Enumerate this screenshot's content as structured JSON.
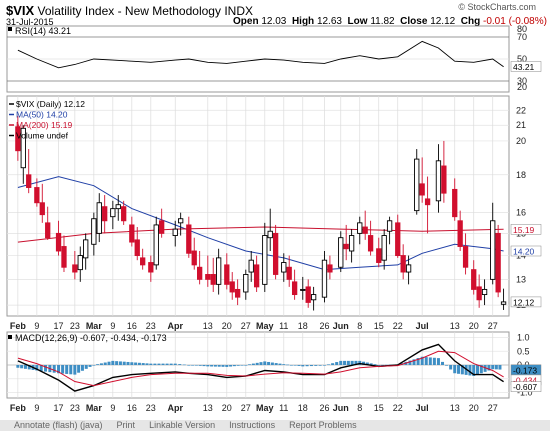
{
  "header": {
    "symbol": "$VIX",
    "name": "Volatility Index - New Methodology",
    "exchange": "INDX",
    "date": "31-Jul-2015",
    "logo": "© StockCharts.com",
    "open_label": "Open",
    "open": "12.03",
    "high_label": "High",
    "high": "12.63",
    "low_label": "Low",
    "low": "11.82",
    "close_label": "Close",
    "close": "12.12",
    "chg_label": "Chg",
    "chg": "-0.01 (-0.08%)",
    "chg_color": "#c00000"
  },
  "chart_data": [
    {
      "type": "line",
      "panel": "rsi",
      "legend": "RSI(14) 43.21",
      "ylim": [
        20,
        80
      ],
      "y_ticks": [
        30,
        50,
        70
      ],
      "levels": [
        30,
        70
      ],
      "current_label": "43.21",
      "line_color": "#000000",
      "x": [
        "2015-02-02",
        "2015-02-09",
        "2015-02-17",
        "2015-02-23",
        "2015-03-02",
        "2015-03-09",
        "2015-03-16",
        "2015-03-23",
        "2015-04-01",
        "2015-04-06",
        "2015-04-13",
        "2015-04-20",
        "2015-04-27",
        "2015-05-04",
        "2015-05-11",
        "2015-05-18",
        "2015-05-26",
        "2015-06-01",
        "2015-06-08",
        "2015-06-15",
        "2015-06-22",
        "2015-07-01",
        "2015-07-07",
        "2015-07-13",
        "2015-07-20",
        "2015-07-27",
        "2015-07-31"
      ],
      "values": [
        58,
        50,
        42,
        45,
        50,
        49,
        48,
        47,
        49,
        50,
        47,
        46,
        48,
        50,
        49,
        47,
        46,
        50,
        53,
        50,
        52,
        66,
        60,
        48,
        47,
        50,
        43
      ]
    },
    {
      "type": "candlestick",
      "panel": "price",
      "legend": [
        "$VIX (Daily) 12.12",
        "MA(50) 14.20",
        "MA(200) 15.19",
        "Volume undef"
      ],
      "ylim": [
        11.6,
        23
      ],
      "y_ticks": [
        12,
        13,
        14,
        15,
        16,
        18,
        20,
        21,
        22
      ],
      "y_scale": "log",
      "current_labels": {
        "ma200": "15.19",
        "ma50": "14.20",
        "close": "12.12"
      },
      "x_ticks": [
        "Feb",
        "9",
        "17",
        "23",
        "Mar",
        "9",
        "16",
        "23",
        "Apr",
        "13",
        "20",
        "27",
        "May",
        "11",
        "18",
        "26",
        "Jun",
        "8",
        "15",
        "22",
        "Jul",
        "13",
        "20",
        "27"
      ],
      "up_color": "#000000",
      "down_color": "#d10f2e",
      "series": [
        {
          "name": "MA(50) 14.20",
          "color": "#1f3fa6",
          "x": [
            "2015-02-02",
            "2015-02-17",
            "2015-03-02",
            "2015-03-16",
            "2015-04-01",
            "2015-04-13",
            "2015-04-27",
            "2015-05-11",
            "2015-05-26",
            "2015-06-08",
            "2015-06-22",
            "2015-07-01",
            "2015-07-13",
            "2015-07-27",
            "2015-07-31"
          ],
          "values": [
            17.3,
            17.9,
            17.4,
            16.2,
            15.4,
            14.8,
            14.2,
            13.9,
            13.4,
            13.5,
            13.6,
            14.1,
            14.5,
            14.3,
            14.2
          ]
        },
        {
          "name": "MA(200) 15.19",
          "color": "#c8102e",
          "x": [
            "2015-02-02",
            "2015-03-02",
            "2015-04-01",
            "2015-05-04",
            "2015-06-01",
            "2015-07-01",
            "2015-07-31"
          ],
          "values": [
            14.6,
            15.0,
            15.2,
            15.3,
            15.2,
            15.1,
            15.19
          ]
        }
      ],
      "candles": [
        {
          "d": "2015-02-02",
          "o": 20.9,
          "h": 21.6,
          "l": 18.8,
          "c": 19.4
        },
        {
          "d": "2015-02-04",
          "o": 18.4,
          "h": 21.0,
          "l": 17.5,
          "c": 20.8
        },
        {
          "d": "2015-02-06",
          "o": 18.0,
          "h": 19.5,
          "l": 17.0,
          "c": 17.3
        },
        {
          "d": "2015-02-09",
          "o": 17.3,
          "h": 17.8,
          "l": 16.3,
          "c": 16.5
        },
        {
          "d": "2015-02-11",
          "o": 16.5,
          "h": 17.5,
          "l": 15.5,
          "c": 15.9
        },
        {
          "d": "2015-02-13",
          "o": 15.5,
          "h": 16.3,
          "l": 14.7,
          "c": 14.8
        },
        {
          "d": "2015-02-17",
          "o": 15.0,
          "h": 15.6,
          "l": 14.0,
          "c": 14.2
        },
        {
          "d": "2015-02-19",
          "o": 14.4,
          "h": 14.9,
          "l": 13.3,
          "c": 13.5
        },
        {
          "d": "2015-02-23",
          "o": 13.6,
          "h": 14.2,
          "l": 13.0,
          "c": 13.3
        },
        {
          "d": "2015-02-25",
          "o": 13.4,
          "h": 14.4,
          "l": 12.9,
          "c": 14.0
        },
        {
          "d": "2015-02-27",
          "o": 13.9,
          "h": 15.0,
          "l": 13.4,
          "c": 14.7
        },
        {
          "d": "2015-03-02",
          "o": 14.5,
          "h": 16.0,
          "l": 14.0,
          "c": 15.7
        },
        {
          "d": "2015-03-04",
          "o": 15.0,
          "h": 17.0,
          "l": 14.6,
          "c": 16.5
        },
        {
          "d": "2015-03-06",
          "o": 16.3,
          "h": 16.9,
          "l": 15.0,
          "c": 15.6
        },
        {
          "d": "2015-03-09",
          "o": 15.8,
          "h": 16.6,
          "l": 15.2,
          "c": 16.2
        },
        {
          "d": "2015-03-11",
          "o": 16.2,
          "h": 16.9,
          "l": 15.6,
          "c": 16.4
        },
        {
          "d": "2015-03-13",
          "o": 16.3,
          "h": 16.6,
          "l": 15.4,
          "c": 15.6
        },
        {
          "d": "2015-03-16",
          "o": 15.4,
          "h": 15.8,
          "l": 14.4,
          "c": 14.6
        },
        {
          "d": "2015-03-18",
          "o": 14.7,
          "h": 15.3,
          "l": 13.8,
          "c": 14.0
        },
        {
          "d": "2015-03-20",
          "o": 13.9,
          "h": 14.3,
          "l": 13.4,
          "c": 13.6
        },
        {
          "d": "2015-03-23",
          "o": 13.7,
          "h": 14.0,
          "l": 12.9,
          "c": 13.3
        },
        {
          "d": "2015-03-25",
          "o": 13.6,
          "h": 15.8,
          "l": 13.4,
          "c": 15.4
        },
        {
          "d": "2015-03-27",
          "o": 15.6,
          "h": 16.2,
          "l": 14.8,
          "c": 15.0
        },
        {
          "d": "2015-04-01",
          "o": 14.9,
          "h": 15.6,
          "l": 14.4,
          "c": 15.2
        },
        {
          "d": "2015-04-03",
          "o": 15.5,
          "h": 16.0,
          "l": 14.9,
          "c": 15.7
        },
        {
          "d": "2015-04-06",
          "o": 15.4,
          "h": 15.8,
          "l": 13.9,
          "c": 14.1
        },
        {
          "d": "2015-04-08",
          "o": 14.2,
          "h": 14.8,
          "l": 13.4,
          "c": 13.6
        },
        {
          "d": "2015-04-10",
          "o": 13.5,
          "h": 14.2,
          "l": 12.8,
          "c": 13.0
        },
        {
          "d": "2015-04-13",
          "o": 13.2,
          "h": 14.0,
          "l": 12.7,
          "c": 13.0
        },
        {
          "d": "2015-04-15",
          "o": 13.2,
          "h": 13.9,
          "l": 12.5,
          "c": 12.8
        },
        {
          "d": "2015-04-17",
          "o": 12.8,
          "h": 14.3,
          "l": 12.4,
          "c": 13.9
        },
        {
          "d": "2015-04-20",
          "o": 13.6,
          "h": 14.1,
          "l": 12.6,
          "c": 12.8
        },
        {
          "d": "2015-04-22",
          "o": 12.9,
          "h": 13.3,
          "l": 12.2,
          "c": 12.5
        },
        {
          "d": "2015-04-24",
          "o": 12.6,
          "h": 13.0,
          "l": 12.0,
          "c": 12.3
        },
        {
          "d": "2015-04-27",
          "o": 12.5,
          "h": 13.4,
          "l": 12.2,
          "c": 13.2
        },
        {
          "d": "2015-04-29",
          "o": 13.3,
          "h": 14.2,
          "l": 12.9,
          "c": 13.8
        },
        {
          "d": "2015-05-01",
          "o": 13.6,
          "h": 14.0,
          "l": 12.5,
          "c": 12.7
        },
        {
          "d": "2015-05-04",
          "o": 12.8,
          "h": 15.5,
          "l": 12.5,
          "c": 14.9
        },
        {
          "d": "2015-05-06",
          "o": 14.8,
          "h": 16.2,
          "l": 14.2,
          "c": 15.1
        },
        {
          "d": "2015-05-08",
          "o": 15.0,
          "h": 15.4,
          "l": 13.0,
          "c": 13.2
        },
        {
          "d": "2015-05-11",
          "o": 13.3,
          "h": 14.1,
          "l": 12.9,
          "c": 13.7
        },
        {
          "d": "2015-05-13",
          "o": 13.5,
          "h": 14.0,
          "l": 12.7,
          "c": 13.0
        },
        {
          "d": "2015-05-15",
          "o": 12.9,
          "h": 13.4,
          "l": 12.2,
          "c": 12.4
        },
        {
          "d": "2015-05-18",
          "o": 12.6,
          "h": 13.1,
          "l": 12.2,
          "c": 12.6
        },
        {
          "d": "2015-05-20",
          "o": 12.7,
          "h": 13.0,
          "l": 11.9,
          "c": 12.1
        },
        {
          "d": "2015-05-22",
          "o": 12.2,
          "h": 12.7,
          "l": 11.8,
          "c": 12.4
        },
        {
          "d": "2015-05-26",
          "o": 12.3,
          "h": 14.2,
          "l": 12.1,
          "c": 13.8
        },
        {
          "d": "2015-05-28",
          "o": 13.6,
          "h": 14.0,
          "l": 13.0,
          "c": 13.3
        },
        {
          "d": "2015-06-01",
          "o": 13.5,
          "h": 15.1,
          "l": 13.3,
          "c": 14.8
        },
        {
          "d": "2015-06-03",
          "o": 14.5,
          "h": 15.4,
          "l": 13.8,
          "c": 14.3
        },
        {
          "d": "2015-06-05",
          "o": 14.2,
          "h": 15.2,
          "l": 13.7,
          "c": 14.9
        },
        {
          "d": "2015-06-08",
          "o": 15.0,
          "h": 15.8,
          "l": 14.5,
          "c": 15.5
        },
        {
          "d": "2015-06-10",
          "o": 15.3,
          "h": 16.1,
          "l": 14.7,
          "c": 15.0
        },
        {
          "d": "2015-06-12",
          "o": 14.9,
          "h": 15.6,
          "l": 14.0,
          "c": 14.2
        },
        {
          "d": "2015-06-15",
          "o": 14.3,
          "h": 14.8,
          "l": 13.5,
          "c": 13.7
        },
        {
          "d": "2015-06-17",
          "o": 13.8,
          "h": 15.2,
          "l": 13.4,
          "c": 14.9
        },
        {
          "d": "2015-06-19",
          "o": 15.1,
          "h": 15.8,
          "l": 14.5,
          "c": 15.6
        },
        {
          "d": "2015-06-22",
          "o": 15.5,
          "h": 15.9,
          "l": 13.9,
          "c": 14.0
        },
        {
          "d": "2015-06-24",
          "o": 14.0,
          "h": 14.5,
          "l": 13.0,
          "c": 13.3
        },
        {
          "d": "2015-06-26",
          "o": 13.3,
          "h": 14.0,
          "l": 12.8,
          "c": 13.6
        },
        {
          "d": "2015-06-29",
          "o": 16.1,
          "h": 19.5,
          "l": 15.9,
          "c": 18.9
        },
        {
          "d": "2015-07-01",
          "o": 17.5,
          "h": 19.0,
          "l": 16.5,
          "c": 16.9
        },
        {
          "d": "2015-07-03",
          "o": 16.7,
          "h": 17.9,
          "l": 15.0,
          "c": 16.4
        },
        {
          "d": "2015-07-07",
          "o": 16.6,
          "h": 19.8,
          "l": 16.0,
          "c": 18.8
        },
        {
          "d": "2015-07-09",
          "o": 18.5,
          "h": 20.0,
          "l": 16.5,
          "c": 17.0
        },
        {
          "d": "2015-07-13",
          "o": 17.2,
          "h": 17.8,
          "l": 15.6,
          "c": 15.8
        },
        {
          "d": "2015-07-15",
          "o": 15.6,
          "h": 16.1,
          "l": 14.2,
          "c": 14.4
        },
        {
          "d": "2015-07-17",
          "o": 14.4,
          "h": 15.0,
          "l": 13.2,
          "c": 13.5
        },
        {
          "d": "2015-07-20",
          "o": 13.4,
          "h": 13.8,
          "l": 12.4,
          "c": 12.6
        },
        {
          "d": "2015-07-22",
          "o": 12.7,
          "h": 13.2,
          "l": 11.9,
          "c": 12.2
        },
        {
          "d": "2015-07-24",
          "o": 12.4,
          "h": 13.0,
          "l": 12.0,
          "c": 12.6
        },
        {
          "d": "2015-07-27",
          "o": 13.0,
          "h": 16.5,
          "l": 12.8,
          "c": 15.6
        },
        {
          "d": "2015-07-29",
          "o": 15.0,
          "h": 15.4,
          "l": 12.3,
          "c": 12.5
        },
        {
          "d": "2015-07-31",
          "o": 12.03,
          "h": 12.63,
          "l": 11.82,
          "c": 12.12
        }
      ]
    },
    {
      "type": "macd",
      "panel": "macd",
      "legend": "MACD(12,26,9) -0.607, -0.434, -0.173",
      "ylim": [
        -1.2,
        1.2
      ],
      "y_ticks": [
        -1.0,
        -0.5,
        0.0,
        0.5,
        1.0
      ],
      "current_labels": [
        "-0.173",
        "-0.434",
        "-0.607"
      ],
      "x_ticks": [
        "Feb",
        "9",
        "17",
        "23",
        "Mar",
        "9",
        "16",
        "23",
        "Apr",
        "13",
        "20",
        "27",
        "May",
        "11",
        "18",
        "26",
        "Jun",
        "8",
        "15",
        "22",
        "Jul",
        "13",
        "20",
        "27"
      ],
      "histogram_color": "#3e8ec4",
      "series": [
        {
          "name": "MACD",
          "color": "#000000",
          "x": [
            "2015-02-02",
            "2015-02-09",
            "2015-02-17",
            "2015-02-23",
            "2015-03-02",
            "2015-03-09",
            "2015-03-16",
            "2015-03-23",
            "2015-04-01",
            "2015-04-06",
            "2015-04-13",
            "2015-04-20",
            "2015-04-27",
            "2015-05-04",
            "2015-05-11",
            "2015-05-18",
            "2015-05-26",
            "2015-06-01",
            "2015-06-08",
            "2015-06-15",
            "2015-06-22",
            "2015-07-01",
            "2015-07-07",
            "2015-07-13",
            "2015-07-20",
            "2015-07-27",
            "2015-07-31"
          ],
          "values": [
            0.15,
            -0.15,
            -0.55,
            -0.95,
            -0.75,
            -0.45,
            -0.35,
            -0.3,
            -0.25,
            -0.3,
            -0.35,
            -0.45,
            -0.4,
            -0.2,
            -0.25,
            -0.35,
            -0.35,
            -0.1,
            0.05,
            -0.05,
            0.0,
            0.55,
            0.75,
            0.15,
            -0.35,
            -0.35,
            -0.607
          ]
        },
        {
          "name": "Signal",
          "color": "#d10f2e",
          "x": [
            "2015-02-02",
            "2015-02-09",
            "2015-02-17",
            "2015-02-23",
            "2015-03-02",
            "2015-03-09",
            "2015-03-16",
            "2015-03-23",
            "2015-04-01",
            "2015-04-06",
            "2015-04-13",
            "2015-04-20",
            "2015-04-27",
            "2015-05-04",
            "2015-05-11",
            "2015-05-18",
            "2015-05-26",
            "2015-06-01",
            "2015-06-08",
            "2015-06-15",
            "2015-06-22",
            "2015-07-01",
            "2015-07-07",
            "2015-07-13",
            "2015-07-20",
            "2015-07-27",
            "2015-07-31"
          ],
          "values": [
            0.25,
            0.05,
            -0.25,
            -0.6,
            -0.75,
            -0.6,
            -0.45,
            -0.35,
            -0.3,
            -0.3,
            -0.3,
            -0.38,
            -0.4,
            -0.33,
            -0.28,
            -0.3,
            -0.33,
            -0.25,
            -0.1,
            -0.05,
            -0.02,
            0.25,
            0.5,
            0.45,
            0.05,
            -0.2,
            -0.434
          ]
        }
      ],
      "histogram": {
        "x": [
          "2015-02-02",
          "2015-02-09",
          "2015-02-17",
          "2015-02-23",
          "2015-03-02",
          "2015-03-09",
          "2015-03-16",
          "2015-03-23",
          "2015-04-01",
          "2015-04-06",
          "2015-04-13",
          "2015-04-20",
          "2015-04-27",
          "2015-05-04",
          "2015-05-11",
          "2015-05-18",
          "2015-05-26",
          "2015-06-01",
          "2015-06-08",
          "2015-06-15",
          "2015-06-22",
          "2015-07-01",
          "2015-07-07",
          "2015-07-13",
          "2015-07-20",
          "2015-07-27",
          "2015-07-31"
        ],
        "values": [
          -0.1,
          -0.2,
          -0.3,
          -0.35,
          0.0,
          0.15,
          0.1,
          0.05,
          0.05,
          0.0,
          -0.05,
          -0.07,
          0.0,
          0.13,
          0.03,
          -0.05,
          -0.02,
          0.15,
          0.15,
          0.0,
          0.02,
          0.3,
          0.25,
          -0.3,
          -0.4,
          -0.15,
          -0.173
        ]
      }
    }
  ],
  "footer": {
    "items": [
      "Annotate (flash) (java)",
      "Print",
      "Linkable Version",
      "Instructions",
      "Report Problems"
    ]
  }
}
